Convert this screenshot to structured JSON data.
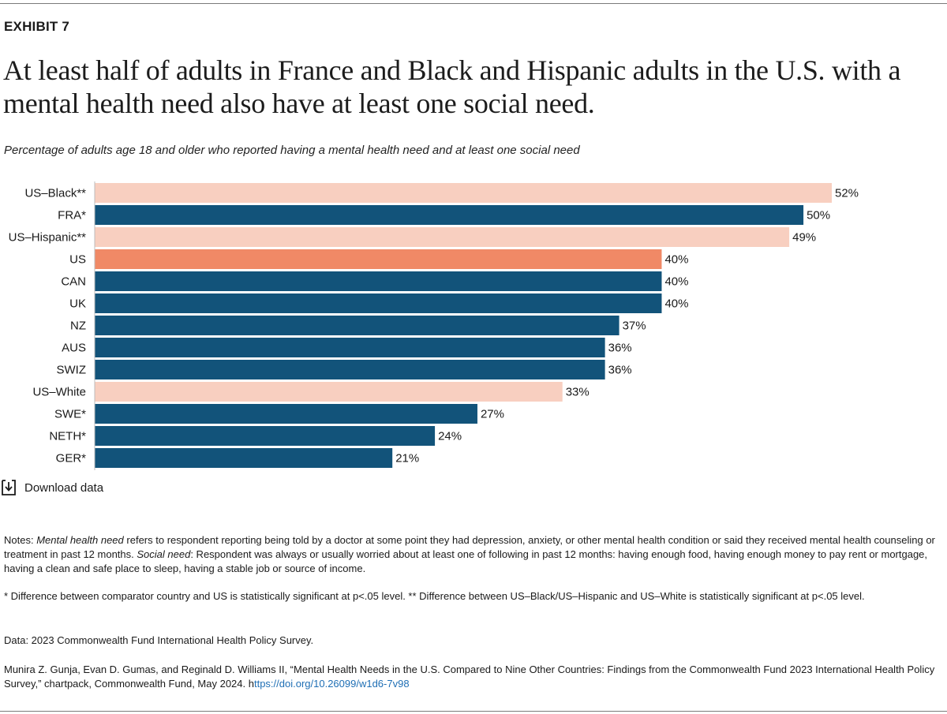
{
  "header": {
    "exhibit": "EXHIBIT 7",
    "title": "At least half of adults in France and Black and Hispanic adults in the U.S. with a mental health need also have at least one social need.",
    "subtitle": "Percentage of adults age 18 and older who reported having a mental health need and at least one social need"
  },
  "colors": {
    "highlight_subgroup": "#f8cfc0",
    "comparator_country": "#12537a",
    "us_total": "#f08966"
  },
  "chart_data": {
    "type": "bar",
    "orientation": "horizontal",
    "title": "Percentage of adults age 18 and older who reported having a mental health need and at least one social need",
    "xlabel": "",
    "ylabel": "",
    "xlim": [
      0,
      52
    ],
    "grid": false,
    "value_suffix": "%",
    "categories": [
      "US–Black**",
      "FRA*",
      "US–Hispanic**",
      "US",
      "CAN",
      "UK",
      "NZ",
      "AUS",
      "SWIZ",
      "US–White",
      "SWE*",
      "NETH*",
      "GER*"
    ],
    "values": [
      52,
      50,
      49,
      40,
      40,
      40,
      37,
      36,
      36,
      33,
      27,
      24,
      21
    ],
    "data_labels": [
      "52%",
      "50%",
      "49%",
      "40%",
      "40%",
      "40%",
      "37%",
      "36%",
      "36%",
      "33%",
      "27%",
      "24%",
      "21%"
    ],
    "groups": [
      "us-subgroup",
      "country",
      "us-subgroup",
      "us",
      "country",
      "country",
      "country",
      "country",
      "country",
      "us-subgroup",
      "country",
      "country",
      "country"
    ]
  },
  "download": {
    "label": "Download data",
    "icon": "download-icon"
  },
  "footer": {
    "notes_prefix": "Notes: ",
    "notes_term1": "Mental health need",
    "notes_text1": " refers to respondent reporting being told by a doctor at some point they had depression, anxiety, or other mental health condition or said they received mental health counseling or treatment in past 12 months. ",
    "notes_term2": "Social need",
    "notes_text2": ": Respondent was always or usually worried about at least one of following in past 12 months: having enough food, having enough money to pay rent or mortgage, having a clean and safe place to sleep, having a stable job or source of income.",
    "significance": "* Difference between comparator country and US is statistically significant at p<.05 level. ** Difference between US–Black/US–Hispanic and US–White is statistically significant at p<.05 level.",
    "data_source": "Data: 2023 Commonwealth Fund International Health Policy Survey.",
    "citation": "Munira Z. Gunja, Evan D. Gumas, and Reginald D. Williams II, “Mental Health Needs in the U.S. Compared to Nine Other Countries: Findings from the Commonwealth Fund 2023 International Health Policy Survey,” chartpack, Commonwealth Fund, May 2024. h",
    "doi_link": "ttps://doi.org/10.26099/w1d6-7v98"
  }
}
